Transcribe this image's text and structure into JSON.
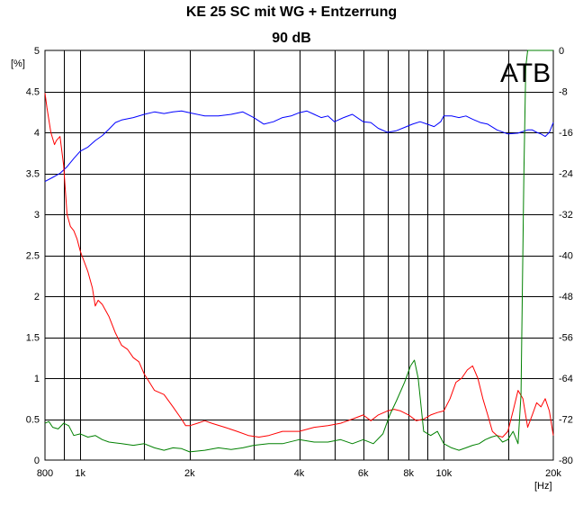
{
  "chart_data": {
    "type": "line",
    "title": "KE 25 SC mit WG + Entzerrung",
    "subtitle": "90 dB",
    "badge": "ATB",
    "xlabel": "[Hz]",
    "ylabel_left": "[%]",
    "x_scale": "log",
    "xlim": [
      800,
      20000
    ],
    "ylim_left": [
      0,
      5
    ],
    "ylim_right": [
      -80,
      0
    ],
    "grid": true,
    "x_major_ticks": [
      {
        "value": 800,
        "label": "800"
      },
      {
        "value": 1000,
        "label": "1k"
      },
      {
        "value": 2000,
        "label": "2k"
      },
      {
        "value": 4000,
        "label": "4k"
      },
      {
        "value": 6000,
        "label": "6k"
      },
      {
        "value": 8000,
        "label": "8k"
      },
      {
        "value": 10000,
        "label": "10k"
      },
      {
        "value": 20000,
        "label": "20k"
      }
    ],
    "x_grid": [
      900,
      1000,
      1500,
      2000,
      3000,
      4000,
      5000,
      6000,
      7000,
      8000,
      9000,
      10000,
      15000
    ],
    "y_left_ticks": [
      "0",
      "0.5",
      "1",
      "1.5",
      "2",
      "2.5",
      "3",
      "3.5",
      "4",
      "4.5",
      "5"
    ],
    "y_right_ticks": [
      "-80",
      "-72",
      "-64",
      "-56",
      "-48",
      "-40",
      "-32",
      "-24",
      "-16",
      "-8",
      "0"
    ],
    "colors": {
      "red": "#ff0000",
      "green": "#008000",
      "blue": "#0000ff",
      "grid": "#000000"
    },
    "series": [
      {
        "color": "#0000ff",
        "axis": "left",
        "points": [
          [
            800,
            3.4
          ],
          [
            840,
            3.45
          ],
          [
            880,
            3.5
          ],
          [
            920,
            3.58
          ],
          [
            960,
            3.68
          ],
          [
            1000,
            3.77
          ],
          [
            1050,
            3.82
          ],
          [
            1100,
            3.9
          ],
          [
            1150,
            3.96
          ],
          [
            1200,
            4.04
          ],
          [
            1250,
            4.12
          ],
          [
            1300,
            4.15
          ],
          [
            1400,
            4.18
          ],
          [
            1500,
            4.22
          ],
          [
            1600,
            4.25
          ],
          [
            1700,
            4.23
          ],
          [
            1800,
            4.25
          ],
          [
            1900,
            4.26
          ],
          [
            2000,
            4.24
          ],
          [
            2200,
            4.2
          ],
          [
            2400,
            4.2
          ],
          [
            2600,
            4.22
          ],
          [
            2800,
            4.25
          ],
          [
            3000,
            4.18
          ],
          [
            3200,
            4.1
          ],
          [
            3400,
            4.13
          ],
          [
            3600,
            4.18
          ],
          [
            3800,
            4.2
          ],
          [
            4000,
            4.24
          ],
          [
            4200,
            4.26
          ],
          [
            4400,
            4.22
          ],
          [
            4600,
            4.18
          ],
          [
            4800,
            4.2
          ],
          [
            5000,
            4.13
          ],
          [
            5300,
            4.18
          ],
          [
            5600,
            4.22
          ],
          [
            6000,
            4.13
          ],
          [
            6300,
            4.12
          ],
          [
            6600,
            4.05
          ],
          [
            7000,
            4.0
          ],
          [
            7400,
            4.02
          ],
          [
            7800,
            4.06
          ],
          [
            8200,
            4.1
          ],
          [
            8600,
            4.13
          ],
          [
            9000,
            4.1
          ],
          [
            9400,
            4.07
          ],
          [
            9800,
            4.13
          ],
          [
            10000,
            4.2
          ],
          [
            10500,
            4.2
          ],
          [
            11000,
            4.18
          ],
          [
            11500,
            4.2
          ],
          [
            12000,
            4.16
          ],
          [
            12600,
            4.12
          ],
          [
            13200,
            4.1
          ],
          [
            14000,
            4.03
          ],
          [
            15000,
            3.98
          ],
          [
            16000,
            3.99
          ],
          [
            17000,
            4.03
          ],
          [
            17500,
            4.03
          ],
          [
            18000,
            4.0
          ],
          [
            18500,
            3.98
          ],
          [
            19000,
            3.95
          ],
          [
            19500,
            4.0
          ],
          [
            20000,
            4.12
          ]
        ]
      },
      {
        "color": "#ff0000",
        "axis": "left",
        "points": [
          [
            800,
            4.48
          ],
          [
            810,
            4.3
          ],
          [
            830,
            4.0
          ],
          [
            850,
            3.85
          ],
          [
            860,
            3.9
          ],
          [
            880,
            3.95
          ],
          [
            900,
            3.6
          ],
          [
            920,
            3.0
          ],
          [
            940,
            2.85
          ],
          [
            960,
            2.8
          ],
          [
            980,
            2.7
          ],
          [
            1000,
            2.55
          ],
          [
            1020,
            2.45
          ],
          [
            1050,
            2.3
          ],
          [
            1080,
            2.1
          ],
          [
            1100,
            1.88
          ],
          [
            1120,
            1.95
          ],
          [
            1150,
            1.9
          ],
          [
            1200,
            1.75
          ],
          [
            1250,
            1.55
          ],
          [
            1300,
            1.4
          ],
          [
            1350,
            1.35
          ],
          [
            1400,
            1.25
          ],
          [
            1450,
            1.2
          ],
          [
            1500,
            1.05
          ],
          [
            1550,
            0.95
          ],
          [
            1600,
            0.85
          ],
          [
            1700,
            0.8
          ],
          [
            1800,
            0.65
          ],
          [
            1900,
            0.5
          ],
          [
            1950,
            0.42
          ],
          [
            2000,
            0.42
          ],
          [
            2100,
            0.45
          ],
          [
            2200,
            0.48
          ],
          [
            2300,
            0.45
          ],
          [
            2500,
            0.4
          ],
          [
            2700,
            0.35
          ],
          [
            2900,
            0.3
          ],
          [
            3100,
            0.28
          ],
          [
            3300,
            0.3
          ],
          [
            3600,
            0.35
          ],
          [
            4000,
            0.35
          ],
          [
            4400,
            0.4
          ],
          [
            4800,
            0.42
          ],
          [
            5200,
            0.45
          ],
          [
            5600,
            0.5
          ],
          [
            6000,
            0.55
          ],
          [
            6300,
            0.48
          ],
          [
            6600,
            0.55
          ],
          [
            7000,
            0.6
          ],
          [
            7300,
            0.62
          ],
          [
            7600,
            0.6
          ],
          [
            8000,
            0.55
          ],
          [
            8400,
            0.48
          ],
          [
            8800,
            0.5
          ],
          [
            9200,
            0.55
          ],
          [
            9600,
            0.58
          ],
          [
            10000,
            0.6
          ],
          [
            10400,
            0.75
          ],
          [
            10800,
            0.95
          ],
          [
            11200,
            1.0
          ],
          [
            11600,
            1.1
          ],
          [
            12000,
            1.15
          ],
          [
            12400,
            1.0
          ],
          [
            12800,
            0.75
          ],
          [
            13200,
            0.55
          ],
          [
            13600,
            0.35
          ],
          [
            14000,
            0.3
          ],
          [
            14500,
            0.28
          ],
          [
            15000,
            0.35
          ],
          [
            15500,
            0.6
          ],
          [
            16000,
            0.85
          ],
          [
            16500,
            0.75
          ],
          [
            17000,
            0.4
          ],
          [
            17500,
            0.55
          ],
          [
            18000,
            0.7
          ],
          [
            18500,
            0.65
          ],
          [
            19000,
            0.75
          ],
          [
            19500,
            0.6
          ],
          [
            20000,
            0.3
          ]
        ]
      },
      {
        "color": "#008000",
        "axis": "left",
        "points": [
          [
            800,
            0.45
          ],
          [
            820,
            0.47
          ],
          [
            840,
            0.4
          ],
          [
            870,
            0.38
          ],
          [
            900,
            0.45
          ],
          [
            930,
            0.42
          ],
          [
            960,
            0.3
          ],
          [
            1000,
            0.32
          ],
          [
            1050,
            0.28
          ],
          [
            1100,
            0.3
          ],
          [
            1150,
            0.25
          ],
          [
            1200,
            0.22
          ],
          [
            1300,
            0.2
          ],
          [
            1400,
            0.18
          ],
          [
            1500,
            0.2
          ],
          [
            1600,
            0.15
          ],
          [
            1700,
            0.12
          ],
          [
            1800,
            0.15
          ],
          [
            1900,
            0.14
          ],
          [
            2000,
            0.1
          ],
          [
            2200,
            0.12
          ],
          [
            2400,
            0.15
          ],
          [
            2600,
            0.13
          ],
          [
            2800,
            0.15
          ],
          [
            3000,
            0.18
          ],
          [
            3300,
            0.2
          ],
          [
            3600,
            0.2
          ],
          [
            4000,
            0.25
          ],
          [
            4400,
            0.22
          ],
          [
            4800,
            0.22
          ],
          [
            5200,
            0.25
          ],
          [
            5600,
            0.2
          ],
          [
            6000,
            0.25
          ],
          [
            6400,
            0.2
          ],
          [
            6800,
            0.32
          ],
          [
            7100,
            0.55
          ],
          [
            7400,
            0.72
          ],
          [
            7800,
            0.95
          ],
          [
            8100,
            1.15
          ],
          [
            8300,
            1.22
          ],
          [
            8500,
            1.0
          ],
          [
            8800,
            0.35
          ],
          [
            9200,
            0.3
          ],
          [
            9600,
            0.35
          ],
          [
            10000,
            0.2
          ],
          [
            10500,
            0.15
          ],
          [
            11000,
            0.12
          ],
          [
            11500,
            0.15
          ],
          [
            12000,
            0.18
          ],
          [
            12500,
            0.2
          ],
          [
            13000,
            0.25
          ],
          [
            13500,
            0.28
          ],
          [
            14000,
            0.3
          ],
          [
            14500,
            0.22
          ],
          [
            15000,
            0.25
          ],
          [
            15500,
            0.35
          ],
          [
            16000,
            0.2
          ],
          [
            16300,
            0.8
          ],
          [
            16600,
            3.5
          ],
          [
            16800,
            4.8
          ],
          [
            17000,
            5.0
          ],
          [
            20000,
            5.0
          ]
        ]
      }
    ]
  }
}
